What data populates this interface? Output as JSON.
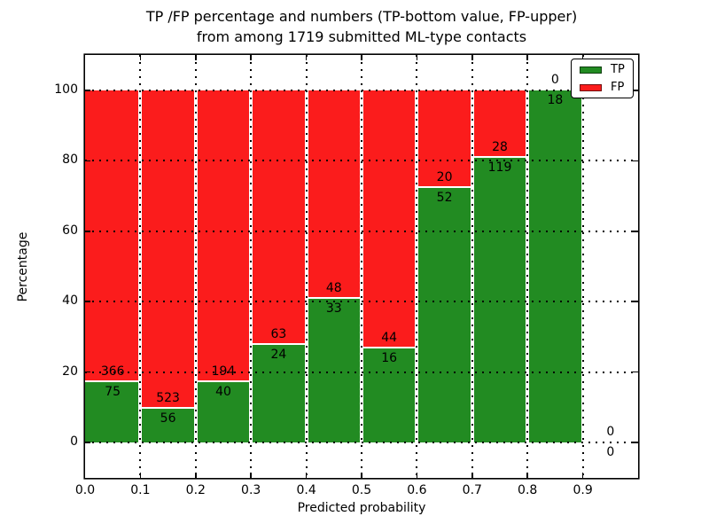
{
  "figure": {
    "title_line1": "TP /FP percentage and numbers (TP-bottom value, FP-upper)",
    "title_line2": "from among 1719 submitted ML-type contacts",
    "xlabel": "Predicted probability",
    "ylabel": "Percentage"
  },
  "legend": {
    "items": [
      {
        "label": "TP",
        "color": "#228b22"
      },
      {
        "label": "FP",
        "color": "#fb1c1c"
      }
    ]
  },
  "chart_data": {
    "type": "bar",
    "subtype": "stacked-percentage",
    "title": "TP /FP percentage and numbers (TP-bottom value, FP-upper) from among 1719 submitted ML-type contacts",
    "xlabel": "Predicted probability",
    "ylabel": "Percentage",
    "total_contacts": 1719,
    "xlim": [
      0.0,
      1.0
    ],
    "ylim": [
      -10,
      110
    ],
    "grid": "dotted",
    "legend_position": "upper right",
    "y_ticks": [
      0,
      20,
      40,
      60,
      80,
      100
    ],
    "x_tick_labels": [
      "0.0",
      "0.1",
      "0.2",
      "0.3",
      "0.4",
      "0.5",
      "0.6",
      "0.7",
      "0.8",
      "0.9"
    ],
    "bins": [
      "0.0-0.1",
      "0.1-0.2",
      "0.2-0.3",
      "0.3-0.4",
      "0.4-0.5",
      "0.5-0.6",
      "0.6-0.7",
      "0.7-0.8",
      "0.8-0.9",
      "0.9-1.0"
    ],
    "series": [
      {
        "name": "TP",
        "color": "#228b22",
        "counts": [
          75,
          56,
          40,
          24,
          33,
          16,
          52,
          119,
          18,
          0
        ]
      },
      {
        "name": "FP",
        "color": "#fb1c1c",
        "counts": [
          366,
          523,
          194,
          63,
          48,
          44,
          20,
          28,
          0,
          0
        ]
      }
    ],
    "tp_percent_per_bin": [
      17.0,
      9.7,
      17.1,
      27.6,
      40.7,
      26.7,
      72.2,
      81.0,
      100.0,
      0.0
    ]
  }
}
